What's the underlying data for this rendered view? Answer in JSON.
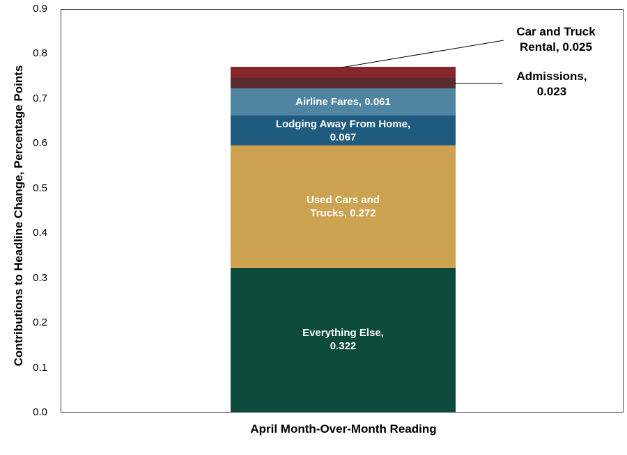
{
  "chart_data": {
    "type": "bar",
    "stacked": true,
    "title": "",
    "xlabel": "April Month-Over-Month Reading",
    "ylabel": "Contributions to Headline Change, Percentage Points",
    "ylim": [
      0,
      0.9
    ],
    "ytick_step": 0.1,
    "ytick_labels": [
      "0.0",
      "0.1",
      "0.2",
      "0.3",
      "0.4",
      "0.5",
      "0.6",
      "0.7",
      "0.8",
      "0.9"
    ],
    "grid": false,
    "legend": "none",
    "categories": [
      "April Month-Over-Month Reading"
    ],
    "bar_total": 0.77,
    "segments_bottom_to_top": [
      {
        "name": "Everything Else",
        "value": 0.322,
        "color": "#0c4a3c",
        "label_lines": [
          "Everything Else,",
          "0.322"
        ],
        "label_style": "inside"
      },
      {
        "name": "Used Cars and Trucks",
        "value": 0.272,
        "color": "#cda250",
        "label_lines": [
          "Used Cars and",
          "Trucks, 0.272"
        ],
        "label_style": "inside"
      },
      {
        "name": "Lodging Away From Home",
        "value": 0.067,
        "color": "#1e5b7e",
        "label_lines": [
          "Lodging Away From Home,",
          "0.067"
        ],
        "label_style": "inside"
      },
      {
        "name": "Airline Fares",
        "value": 0.061,
        "color": "#4f85a3",
        "label_lines": [
          "Airline Fares, 0.061"
        ],
        "label_style": "inside"
      },
      {
        "name": "Admissions",
        "value": 0.023,
        "color": "#592b2f",
        "label_lines": [
          "Admissions,",
          "0.023"
        ],
        "label_style": "callout"
      },
      {
        "name": "Car and Truck Rental",
        "value": 0.025,
        "color": "#86262e",
        "label_lines": [
          "Car and Truck",
          "Rental, 0.025"
        ],
        "label_style": "callout"
      }
    ],
    "annotations": {
      "car_and_truck_rental": {
        "line1": "Car and Truck",
        "line2": "Rental, 0.025"
      },
      "admissions": {
        "line1": "Admissions,",
        "line2": "0.023"
      }
    }
  }
}
